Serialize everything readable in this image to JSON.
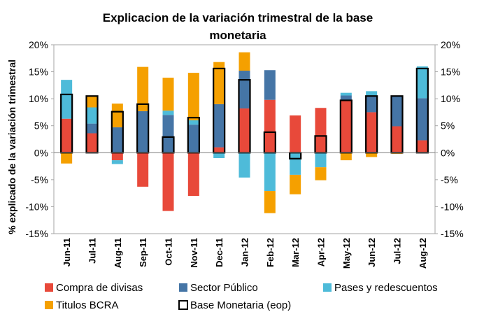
{
  "chart_data": {
    "type": "bar",
    "title_line1": "Explicacion de la variación trimestral de la base",
    "title_line2": "monetaria",
    "ylabel": "% explicado de la variación trimestral",
    "ylim": [
      -15,
      20
    ],
    "yticks": [
      -15,
      -10,
      -5,
      0,
      5,
      10,
      15,
      20
    ],
    "ytick_labels": [
      "-15%",
      "-10%",
      "-5%",
      "0%",
      "5%",
      "10%",
      "15%",
      "20%"
    ],
    "categories": [
      "Jun-11",
      "Jul-11",
      "Aug-11",
      "Sep-11",
      "Oct-11",
      "Nov-11",
      "Dec-11",
      "Jan-12",
      "Feb-12",
      "Mar-12",
      "Apr-12",
      "May-12",
      "Jun-12",
      "Jul-12",
      "Aug-12"
    ],
    "series": [
      {
        "name": "Compra de divisas",
        "color": "#E8493A",
        "values": [
          6.3,
          3.6,
          -1.4,
          -6.3,
          -10.8,
          -8.0,
          1.0,
          8.2,
          9.8,
          6.9,
          8.3,
          9.7,
          7.5,
          4.9,
          2.3
        ]
      },
      {
        "name": "Sector Público",
        "color": "#4575A6",
        "values": [
          0.0,
          1.8,
          4.7,
          7.7,
          7.0,
          5.2,
          8.0,
          7.0,
          5.5,
          0.0,
          0.0,
          0.9,
          3.1,
          5.7,
          7.8
        ]
      },
      {
        "name": "Pases y redescuentos",
        "color": "#4EBBD9",
        "values": [
          7.2,
          3.0,
          -0.7,
          0.0,
          0.8,
          0.8,
          -1.0,
          -4.6,
          -7.1,
          -4.1,
          -2.7,
          0.5,
          0.8,
          0.0,
          5.9
        ]
      },
      {
        "name": "Titulos BCRA",
        "color": "#F5A000",
        "values": [
          -2.0,
          2.1,
          4.4,
          8.2,
          6.1,
          8.8,
          7.8,
          3.4,
          -4.1,
          -3.6,
          -2.4,
          -1.4,
          -0.8,
          -0.2,
          0.0
        ]
      },
      {
        "name": "Base Monetaria (eop)",
        "type": "outline",
        "values": [
          10.8,
          10.5,
          7.6,
          9.0,
          2.9,
          6.5,
          15.6,
          13.5,
          3.8,
          -1.1,
          3.1,
          9.7,
          10.5,
          10.5,
          15.6
        ]
      }
    ],
    "legend_position": "bottom",
    "grid": false
  }
}
